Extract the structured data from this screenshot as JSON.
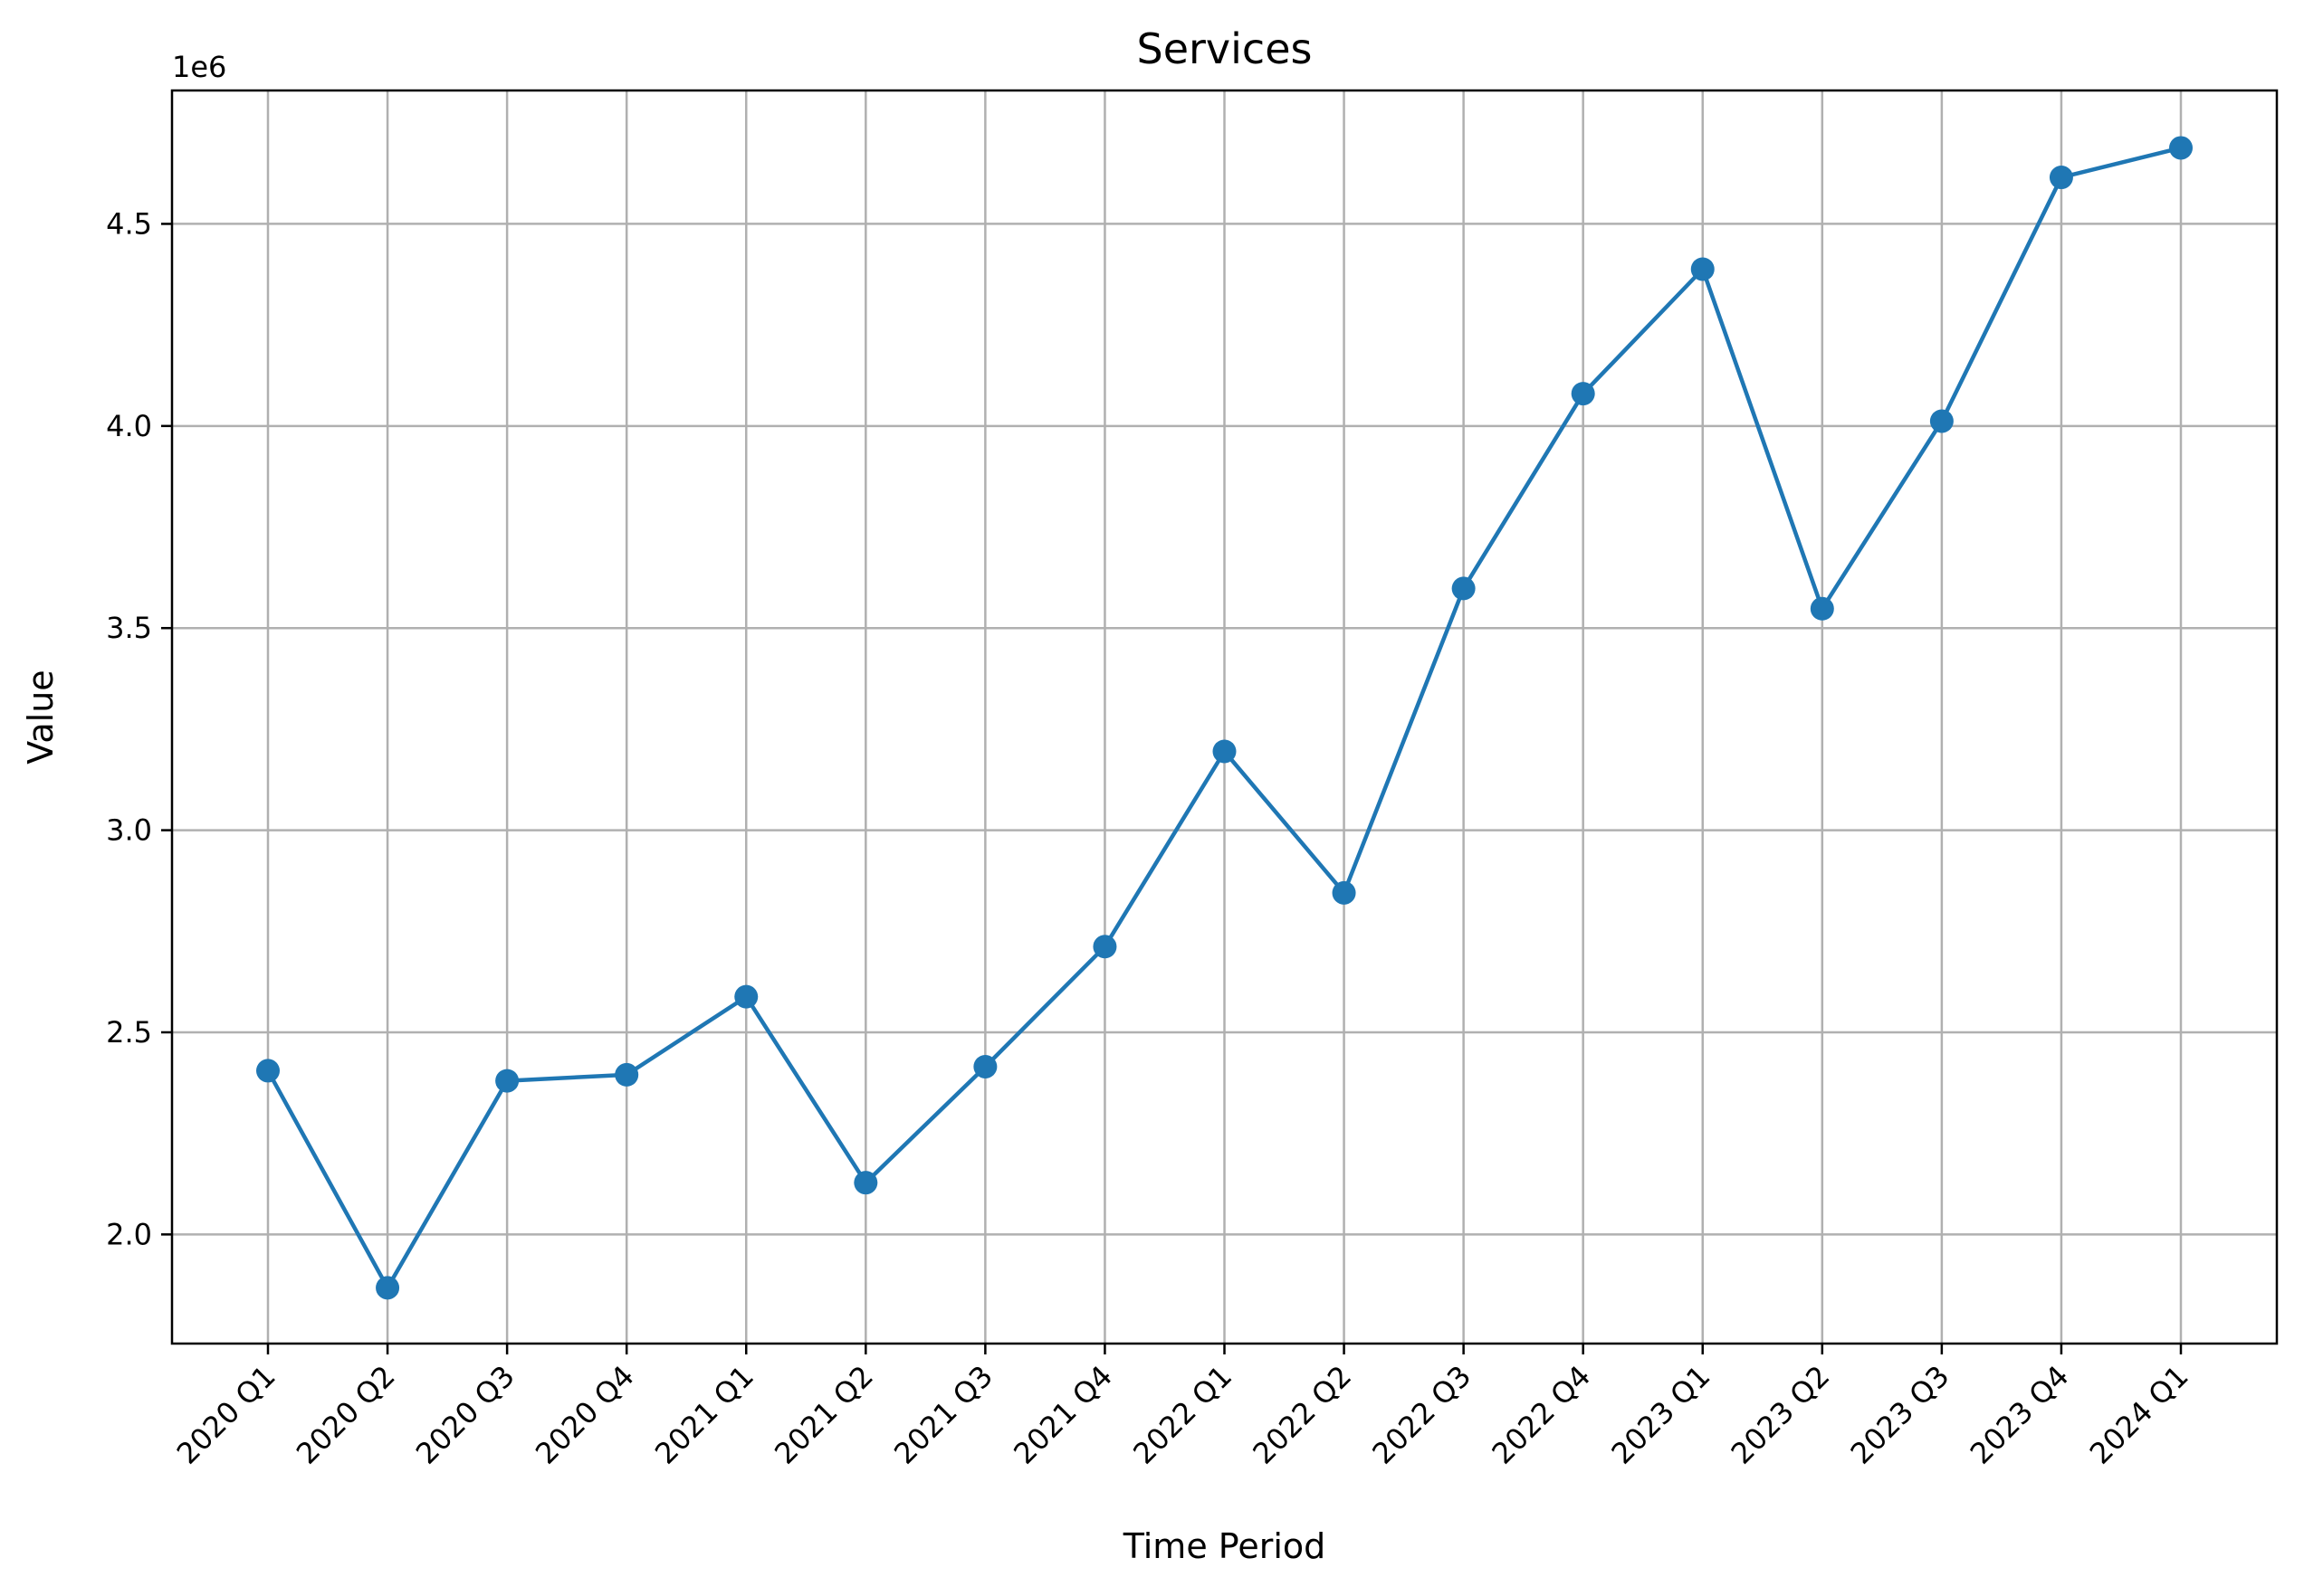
{
  "chart_data": {
    "type": "line",
    "title": "Services",
    "xlabel": "Time Period",
    "ylabel": "Value",
    "y_offset_label": "1e6",
    "categories": [
      "2020 Q1",
      "2020 Q2",
      "2020 Q3",
      "2020 Q4",
      "2021 Q1",
      "2021 Q2",
      "2021 Q3",
      "2021 Q4",
      "2022 Q1",
      "2022 Q2",
      "2022 Q3",
      "2022 Q4",
      "2023 Q1",
      "2023 Q2",
      "2023 Q3",
      "2023 Q4",
      "2024 Q1"
    ],
    "series": [
      {
        "values": [
          2405000,
          1868000,
          2380000,
          2395000,
          2588000,
          2128000,
          2415000,
          2712000,
          3195000,
          2845000,
          3598000,
          4080000,
          4388000,
          3548000,
          4012000,
          4615000,
          4688000
        ],
        "color": "#1f77b4",
        "marker": "circle"
      }
    ],
    "yticks": [
      2.0,
      2.5,
      3.0,
      3.5,
      4.0,
      4.5
    ],
    "ytick_labels": [
      "2.0",
      "2.5",
      "3.0",
      "3.5",
      "4.0",
      "4.5"
    ],
    "ylim": [
      1730000,
      4830000
    ],
    "grid": true,
    "legend": "none"
  }
}
